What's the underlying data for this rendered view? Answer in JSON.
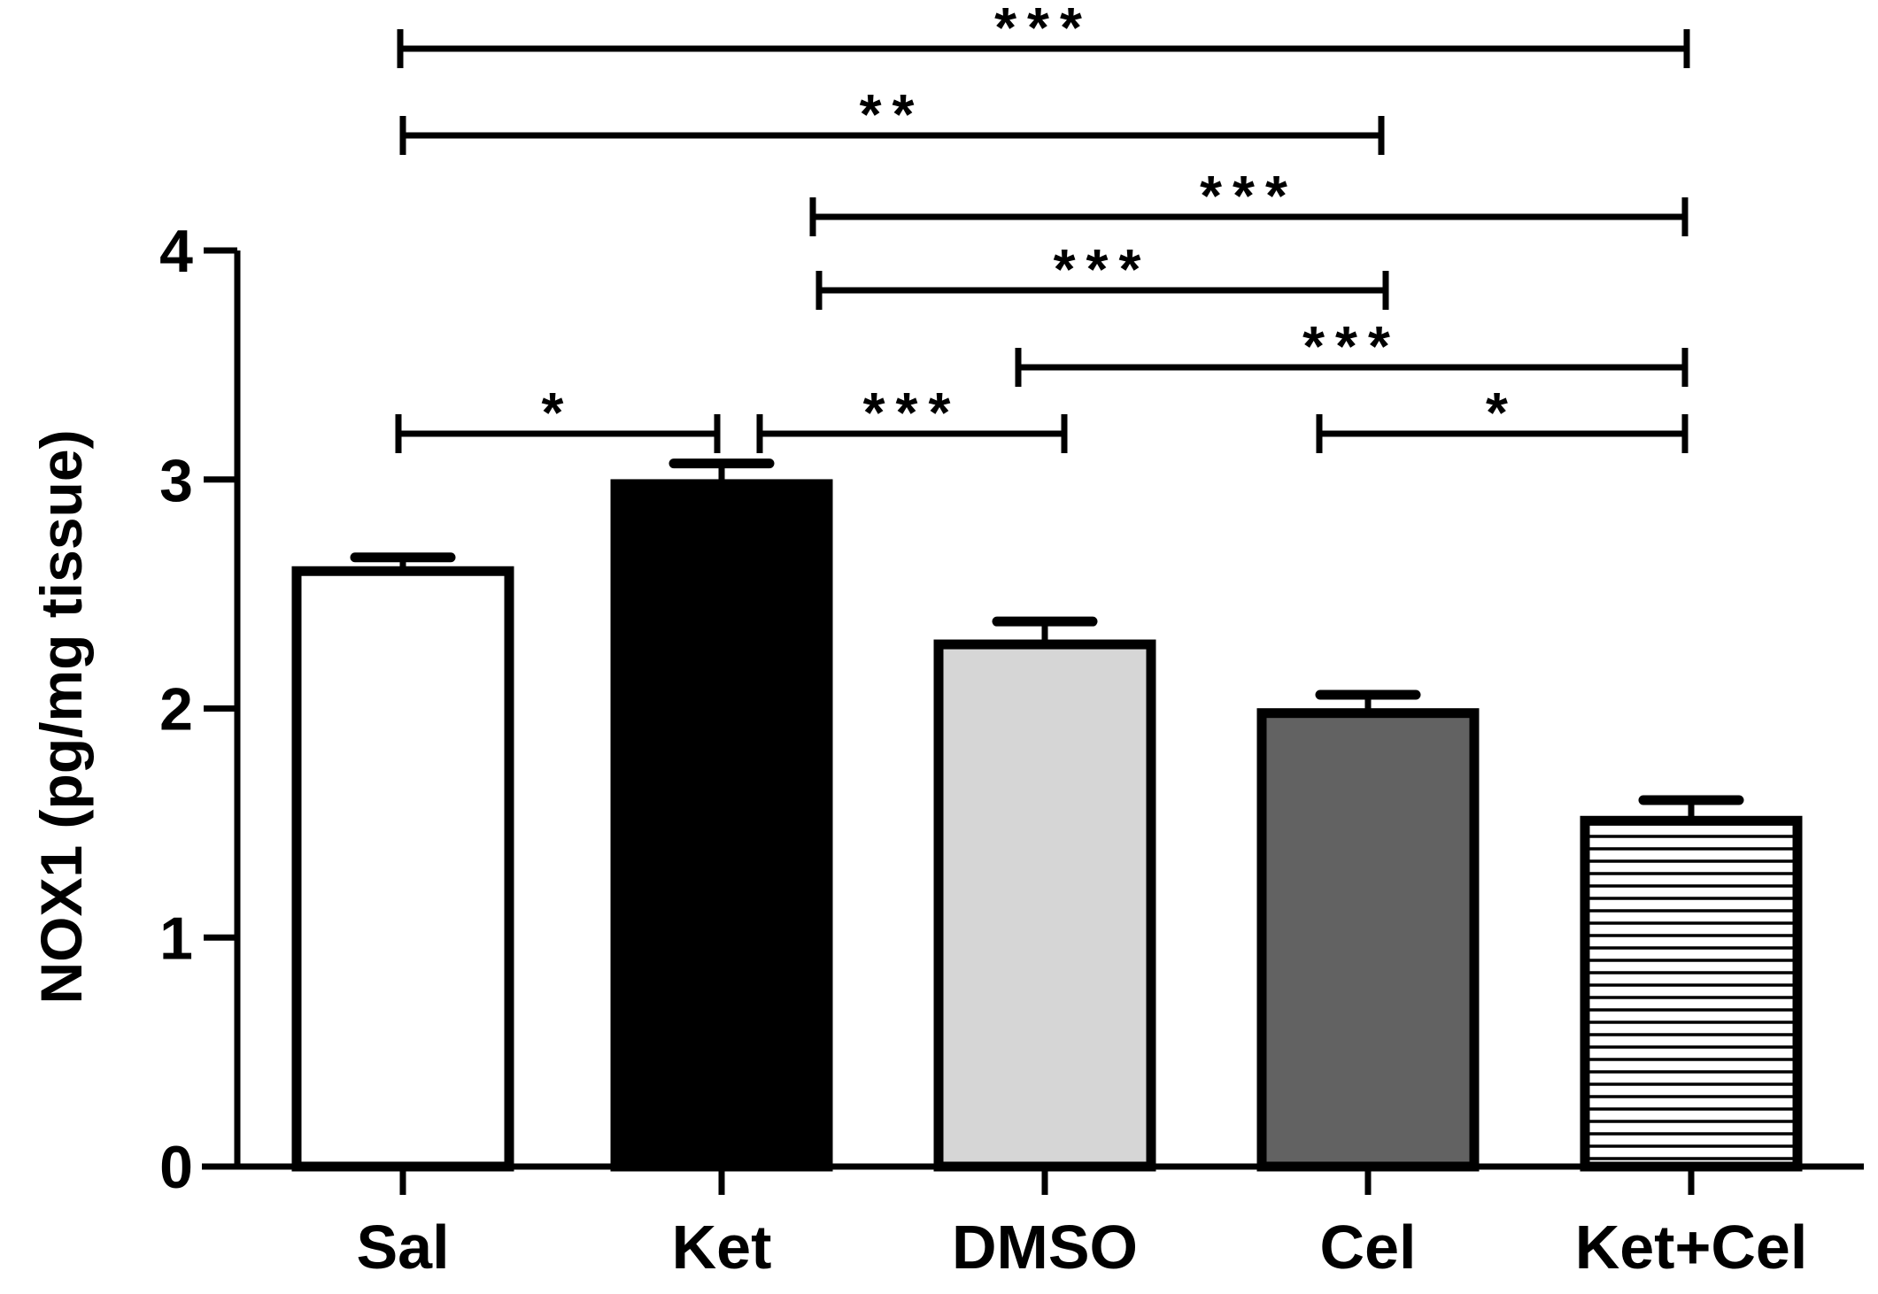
{
  "chart_data": {
    "type": "bar",
    "title": "",
    "xlabel": "",
    "ylabel": "NOX1 (pg/mg tissue)",
    "ylim": [
      0,
      4
    ],
    "yticks": [
      0,
      1,
      2,
      3,
      4
    ],
    "categories": [
      "Sal",
      "Ket",
      "DMSO",
      "Cel",
      "Ket+Cel"
    ],
    "values": [
      2.6,
      2.98,
      2.28,
      1.98,
      1.51
    ],
    "errors": [
      0.06,
      0.09,
      0.1,
      0.08,
      0.09
    ],
    "fills": [
      "#ffffff",
      "#000000",
      "#d6d6d6",
      "#626262",
      "hatched-horizontal"
    ],
    "significance": [
      {
        "from": "Sal",
        "to": "Ket+Cel",
        "stars": "***"
      },
      {
        "from": "Sal",
        "to": "Cel",
        "stars": "**"
      },
      {
        "from": "Ket",
        "to": "Ket+Cel",
        "stars": "***"
      },
      {
        "from": "Ket",
        "to": "Cel",
        "stars": "***"
      },
      {
        "from": "DMSO",
        "to": "Ket+Cel",
        "stars": "***"
      },
      {
        "from": "Sal",
        "to": "Ket",
        "stars": "*"
      },
      {
        "from": "Ket",
        "to": "DMSO",
        "stars": "***"
      },
      {
        "from": "Cel",
        "to": "Ket+Cel",
        "stars": "*"
      }
    ]
  }
}
